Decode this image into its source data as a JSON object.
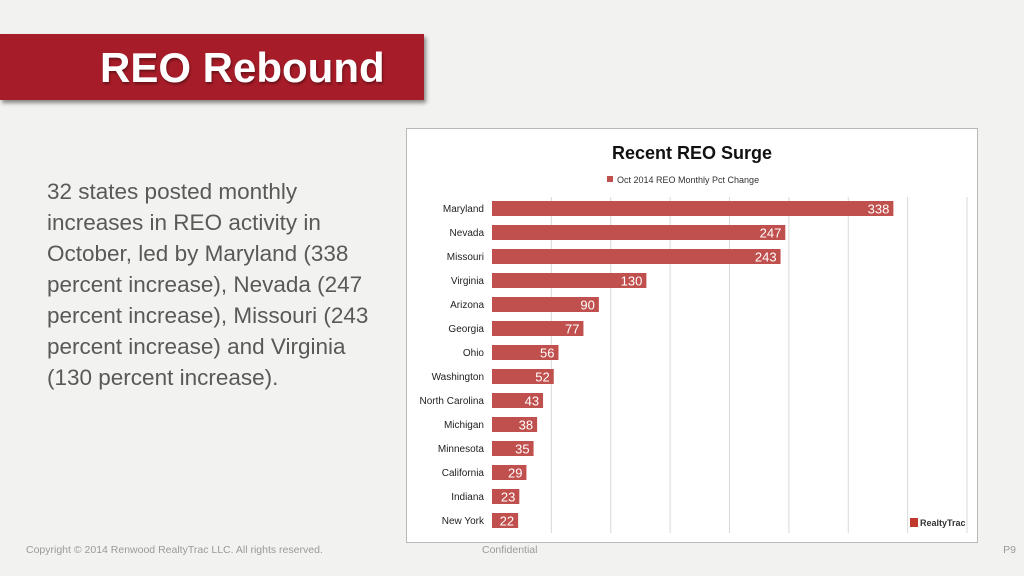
{
  "slide": {
    "title": "REO Rebound",
    "body": "32 states posted monthly increases in REO activity in October, led by Maryland (338 percent increase), Nevada (247 percent increase), Missouri (243 percent increase) and Virginia (130 percent increase).",
    "footer_left": "Copyright © 2014 Renwood RealtyTrac LLC. All rights reserved.",
    "footer_center": "Confidential",
    "page": "P9"
  },
  "chart_data": {
    "type": "bar",
    "orientation": "horizontal",
    "title": "Recent REO Surge",
    "legend_position": "top",
    "categories": [
      "Maryland",
      "Nevada",
      "Missouri",
      "Virginia",
      "Arizona",
      "Georgia",
      "Ohio",
      "Washington",
      "North Carolina",
      "Michigan",
      "Minnesota",
      "California",
      "Indiana",
      "New York"
    ],
    "series": [
      {
        "name": "Oct 2014 REO Monthly Pct Change",
        "color": "#c0504d",
        "values": [
          338,
          247,
          243,
          130,
          90,
          77,
          56,
          52,
          43,
          38,
          35,
          29,
          23,
          22
        ]
      }
    ],
    "xlim": [
      0,
      400
    ],
    "grid": "vertical",
    "data_labels": true,
    "logo_text": "RealtyTrac"
  }
}
